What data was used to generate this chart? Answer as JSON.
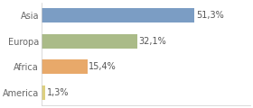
{
  "categories": [
    "Asia",
    "Europa",
    "Africa",
    "America"
  ],
  "values": [
    51.3,
    32.1,
    15.4,
    1.3
  ],
  "labels": [
    "51,3%",
    "32,1%",
    "15,4%",
    "1,3%"
  ],
  "bar_colors": [
    "#7b9dc4",
    "#aabb88",
    "#e8a96a",
    "#ddd080"
  ],
  "background_color": "#ffffff",
  "plot_bg_color": "#ffffff",
  "border_color": "#cccccc",
  "xlim": [
    0,
    70
  ],
  "bar_height": 0.55,
  "label_fontsize": 7.0,
  "category_fontsize": 7.0,
  "label_color": "#555555",
  "category_color": "#666666"
}
